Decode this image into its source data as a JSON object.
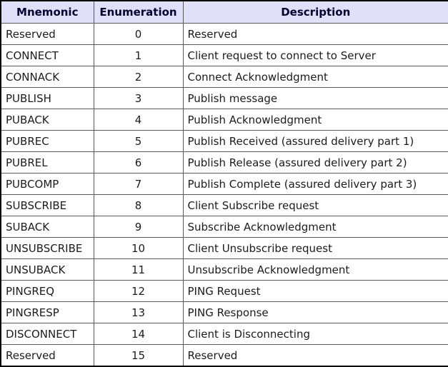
{
  "table": {
    "headers": [
      "Mnemonic",
      "Enumeration",
      "Description"
    ],
    "header_bg_color": "#e0e0f8",
    "header_text_color": "#000033",
    "rows": [
      {
        "mnemonic": "Reserved",
        "enumeration": "0",
        "description": "Reserved"
      },
      {
        "mnemonic": "CONNECT",
        "enumeration": "1",
        "description": "Client request to connect to Server"
      },
      {
        "mnemonic": "CONNACK",
        "enumeration": "2",
        "description": "Connect Acknowledgment"
      },
      {
        "mnemonic": "PUBLISH",
        "enumeration": "3",
        "description": "Publish message"
      },
      {
        "mnemonic": "PUBACK",
        "enumeration": "4",
        "description": "Publish Acknowledgment"
      },
      {
        "mnemonic": "PUBREC",
        "enumeration": "5",
        "description": "Publish Received (assured delivery part 1)"
      },
      {
        "mnemonic": "PUBREL",
        "enumeration": "6",
        "description": "Publish Release (assured delivery part 2)"
      },
      {
        "mnemonic": "PUBCOMP",
        "enumeration": "7",
        "description": "Publish Complete (assured delivery part 3)"
      },
      {
        "mnemonic": "SUBSCRIBE",
        "enumeration": "8",
        "description": "Client Subscribe request"
      },
      {
        "mnemonic": "SUBACK",
        "enumeration": "9",
        "description": "Subscribe Acknowledgment"
      },
      {
        "mnemonic": "UNSUBSCRIBE",
        "enumeration": "10",
        "description": "Client Unsubscribe request"
      },
      {
        "mnemonic": "UNSUBACK",
        "enumeration": "11",
        "description": "Unsubscribe Acknowledgment"
      },
      {
        "mnemonic": "PINGREQ",
        "enumeration": "12",
        "description": "PING Request"
      },
      {
        "mnemonic": "PINGRESP",
        "enumeration": "13",
        "description": "PING Response"
      },
      {
        "mnemonic": "DISCONNECT",
        "enumeration": "14",
        "description": "Client is Disconnecting"
      },
      {
        "mnemonic": "Reserved",
        "enumeration": "15",
        "description": "Reserved"
      }
    ]
  }
}
